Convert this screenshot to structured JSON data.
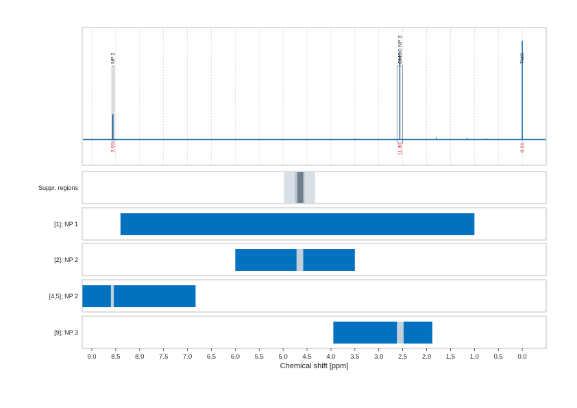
{
  "chart_data": {
    "type": "nmr-spectrum-with-region-tracks",
    "xlabel": "Chemical shift [ppm]",
    "xlim": [
      9.2,
      -0.5
    ],
    "x_reversed": true,
    "x_ticks": [
      9.0,
      8.5,
      8.0,
      7.5,
      7.0,
      6.5,
      6.0,
      5.5,
      5.0,
      4.5,
      4.0,
      3.5,
      3.0,
      2.5,
      2.0,
      1.5,
      1.0,
      0.5,
      0.0
    ],
    "x_tick_labels": [
      "9.0",
      "8.5",
      "8.0",
      "7.5",
      "7.0",
      "6.5",
      "6.0",
      "5.5",
      "5.0",
      "4.5",
      "4.0",
      "3.5",
      "3.0",
      "2.5",
      "2.0",
      "1.5",
      "1.0",
      "0.5",
      "0.0"
    ],
    "grid": "vertical dotted",
    "colors": {
      "spectrum": "#1f6fb0",
      "region_fill": "#0271bf",
      "gap_fill": "#c2d0dc",
      "integral_text": "#e0242a",
      "frame": "#bdbdbd",
      "suppr_outer": "#d8e0e7",
      "suppr_mid": "#b4c1cc",
      "suppr_inner": "#6e7f8c"
    },
    "spectrum": {
      "baseline": 0.0,
      "ylim": [
        -0.25,
        1.0
      ],
      "peaks": [
        {
          "ppm": 8.56,
          "height": 0.19,
          "label": "NP 2",
          "integral": "2.00",
          "box": [
            8.54,
            8.58
          ]
        },
        {
          "ppm": 2.56,
          "height": 0.66,
          "label": "DMSO NP 3",
          "integral": "11.80",
          "box": [
            2.5,
            2.62
          ]
        },
        {
          "ppm": 0.0,
          "height": 0.74,
          "label": "TMS",
          "integral": "0.01",
          "box": null
        }
      ],
      "minor_peaks": [
        {
          "ppm": 3.5,
          "height": 0.01
        },
        {
          "ppm": 1.8,
          "height": 0.02
        },
        {
          "ppm": 1.15,
          "height": 0.015
        },
        {
          "ppm": 0.75,
          "height": 0.01
        }
      ]
    },
    "tracks": [
      {
        "label": "Suppr. regions",
        "kind": "suppression",
        "bands": [
          {
            "from": 4.98,
            "to": 4.33,
            "level": "outer"
          },
          {
            "from": 4.75,
            "to": 4.55,
            "level": "mid"
          },
          {
            "from": 4.7,
            "to": 4.58,
            "level": "inner"
          }
        ]
      },
      {
        "label": "[1]; NP 1",
        "kind": "region",
        "from": 8.4,
        "to": 1.0,
        "gaps": []
      },
      {
        "label": "[2]; NP 2",
        "kind": "region",
        "from": 6.0,
        "to": 3.5,
        "gaps": [
          [
            4.72,
            4.58
          ]
        ]
      },
      {
        "label": "[4,5]; NP 2",
        "kind": "region",
        "from": 9.2,
        "to": 6.83,
        "gaps": [
          [
            8.6,
            8.54
          ]
        ]
      },
      {
        "label": "[9]; NP 3",
        "kind": "region",
        "from": 3.95,
        "to": 1.88,
        "gaps": [
          [
            2.62,
            2.48
          ]
        ]
      }
    ]
  }
}
